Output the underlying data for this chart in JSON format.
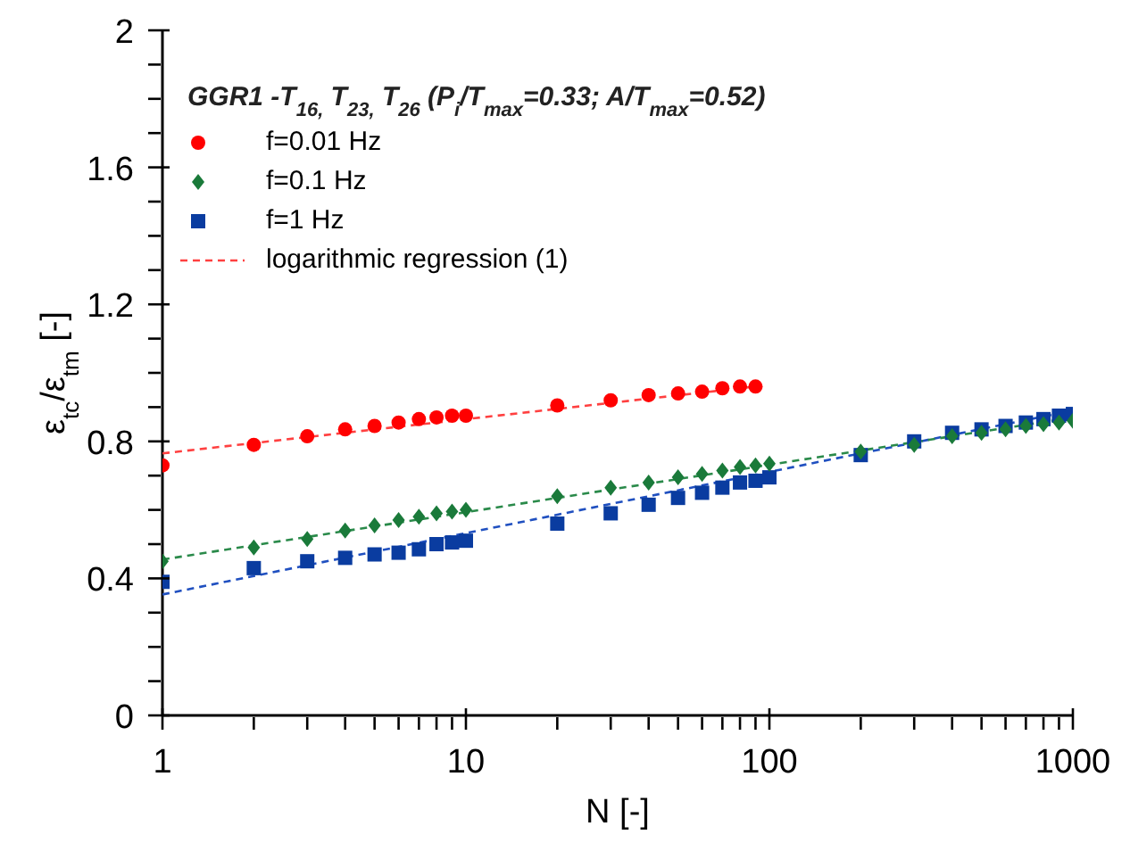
{
  "chart_data": {
    "type": "scatter",
    "title": "GGR1 -T$_{16,}$ T$_{23,}$ T$_{26}$ (P$_{i}$/T$_{max}$=0.33; A/T$_{max}$=0.52)",
    "xlabel": "N [-]",
    "ylabel": "ε$_{tc}$/ε$_{tm}$ [-]",
    "log": "x",
    "grid": false,
    "legend": "top left",
    "xlim": [
      1,
      1000
    ],
    "xticks": [
      1,
      {
        "value": 2,
        "label": null
      },
      {
        "value": 3,
        "label": null
      },
      {
        "value": 4,
        "label": null
      },
      {
        "value": 5,
        "label": null
      },
      {
        "value": 6,
        "label": null
      },
      {
        "value": 7,
        "label": null
      },
      {
        "value": 8,
        "label": null
      },
      {
        "value": 9,
        "label": null
      },
      10,
      {
        "value": 20,
        "label": null
      },
      {
        "value": 30,
        "label": null
      },
      {
        "value": 40,
        "label": null
      },
      {
        "value": 50,
        "label": null
      },
      {
        "value": 60,
        "label": null
      },
      {
        "value": 70,
        "label": null
      },
      {
        "value": 80,
        "label": null
      },
      {
        "value": 90,
        "label": null
      },
      100,
      {
        "value": 200,
        "label": null
      },
      {
        "value": 300,
        "label": null
      },
      {
        "value": 400,
        "label": null
      },
      {
        "value": 500,
        "label": null
      },
      {
        "value": 600,
        "label": null
      },
      {
        "value": 700,
        "label": null
      },
      {
        "value": 800,
        "label": null
      },
      {
        "value": 900,
        "label": null
      },
      1000
    ],
    "ylim": [
      0,
      2
    ],
    "yticks": [
      0,
      {
        "value": 0.1,
        "label": null
      },
      {
        "value": 0.2,
        "label": null
      },
      {
        "value": 0.3,
        "label": null
      },
      0.4,
      {
        "value": 0.5,
        "label": null
      },
      {
        "value": 0.6,
        "label": null
      },
      {
        "value": 0.7,
        "label": null
      },
      0.8,
      {
        "value": 0.9,
        "label": null
      },
      {
        "value": 1.0,
        "label": null
      },
      {
        "value": 1.1,
        "label": null
      },
      1.2,
      {
        "value": 1.3,
        "label": null
      },
      {
        "value": 1.4,
        "label": null
      },
      {
        "value": 1.5,
        "label": null
      },
      1.6,
      {
        "value": 1.7,
        "label": null
      },
      {
        "value": 1.8,
        "label": null
      },
      {
        "value": 1.9,
        "label": null
      },
      2
    ],
    "series": [
      {
        "name": "f=0.01 Hz",
        "marker": "circle",
        "color": "#ff0000",
        "x": [
          1,
          2,
          3,
          4,
          5,
          6,
          7,
          8,
          9,
          10,
          20,
          30,
          40,
          50,
          60,
          70,
          80,
          90
        ],
        "values": [
          0.73,
          0.79,
          0.815,
          0.835,
          0.845,
          0.855,
          0.865,
          0.87,
          0.875,
          0.875,
          0.905,
          0.92,
          0.935,
          0.94,
          0.945,
          0.955,
          0.96,
          0.96
        ]
      },
      {
        "name": "f=0.1 Hz",
        "marker": "diamond",
        "color": "#1a7a3a",
        "x": [
          1,
          2,
          3,
          4,
          5,
          6,
          7,
          8,
          9,
          10,
          20,
          30,
          40,
          50,
          60,
          70,
          80,
          90,
          100,
          200,
          300,
          400,
          500,
          600,
          700,
          800,
          900,
          1000
        ],
        "values": [
          0.45,
          0.49,
          0.515,
          0.54,
          0.555,
          0.57,
          0.58,
          0.59,
          0.595,
          0.6,
          0.64,
          0.665,
          0.68,
          0.695,
          0.705,
          0.715,
          0.725,
          0.73,
          0.735,
          0.77,
          0.79,
          0.815,
          0.825,
          0.835,
          0.845,
          0.85,
          0.855,
          0.86
        ]
      },
      {
        "name": "f=1 Hz",
        "marker": "square",
        "color": "#0a3ca0",
        "x": [
          1,
          2,
          3,
          4,
          5,
          6,
          7,
          8,
          9,
          10,
          20,
          30,
          40,
          50,
          60,
          70,
          80,
          90,
          100,
          200,
          300,
          400,
          500,
          600,
          700,
          800,
          900,
          1000
        ],
        "values": [
          0.39,
          0.43,
          0.45,
          0.46,
          0.47,
          0.475,
          0.485,
          0.5,
          0.505,
          0.51,
          0.56,
          0.59,
          0.615,
          0.635,
          0.65,
          0.665,
          0.68,
          0.685,
          0.695,
          0.76,
          0.8,
          0.825,
          0.835,
          0.845,
          0.855,
          0.865,
          0.875,
          0.88
        ]
      },
      {
        "name": "logarithmic regression (1)",
        "type": "line",
        "marker": "none",
        "line_style": "dashed",
        "color": "#ff4040",
        "x": [
          1,
          90
        ],
        "values": [
          0.765,
          0.96
        ]
      },
      {
        "type": "line",
        "marker": "none",
        "line_style": "dashed",
        "color": "#2a8a4a",
        "x": [
          1,
          1000
        ],
        "values": [
          0.455,
          0.87
        ]
      },
      {
        "type": "line",
        "marker": "none",
        "line_style": "dashed",
        "color": "#2050c0",
        "x": [
          1,
          1000
        ],
        "values": [
          0.353,
          0.89
        ]
      }
    ]
  }
}
